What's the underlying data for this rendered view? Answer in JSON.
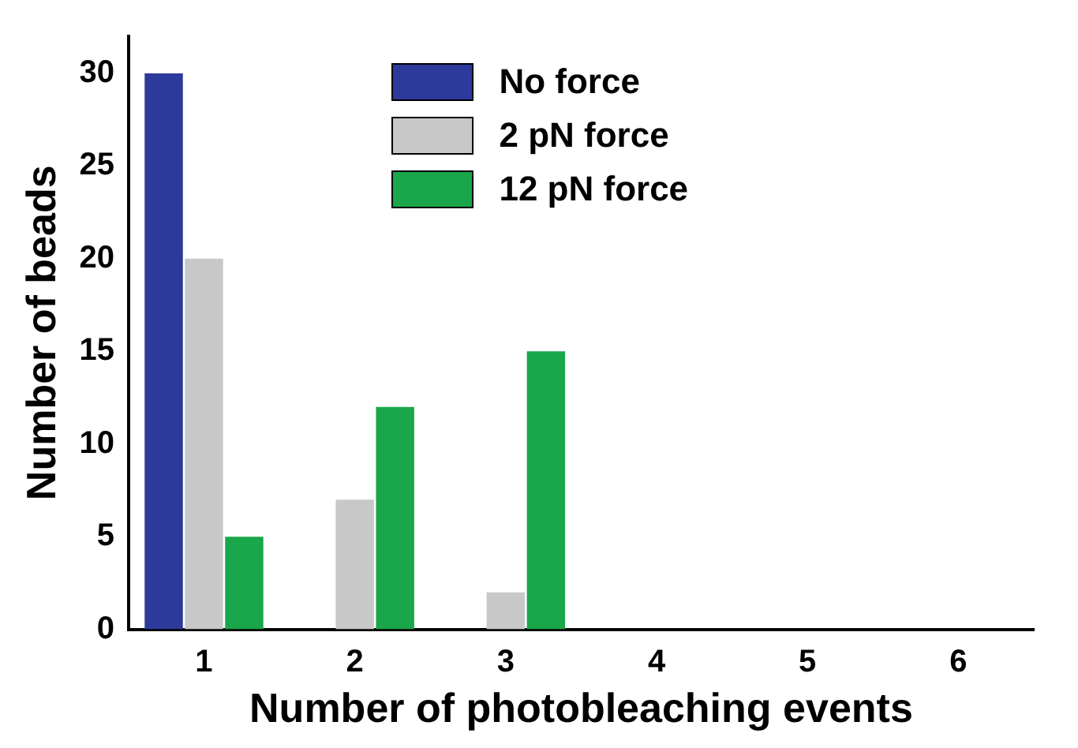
{
  "chart_data": {
    "type": "bar",
    "xlabel": "Number of photobleaching events",
    "ylabel": "Number of beads",
    "categories": [
      "1",
      "2",
      "3",
      "4",
      "5",
      "6"
    ],
    "series": [
      {
        "name": "No force",
        "color": "#2b3a9b",
        "values": [
          30,
          0,
          0,
          0,
          0,
          0
        ]
      },
      {
        "name": "2 pN force",
        "color": "#c8c8c8",
        "values": [
          20,
          7,
          2,
          0,
          0,
          0
        ]
      },
      {
        "name": "12 pN force",
        "color": "#1aa64a",
        "values": [
          5,
          12,
          15,
          0,
          0,
          0
        ]
      }
    ],
    "ylim": [
      0,
      32
    ],
    "yticks": [
      0,
      5,
      10,
      15,
      20,
      25,
      30
    ],
    "grid": false,
    "legend": "top"
  }
}
